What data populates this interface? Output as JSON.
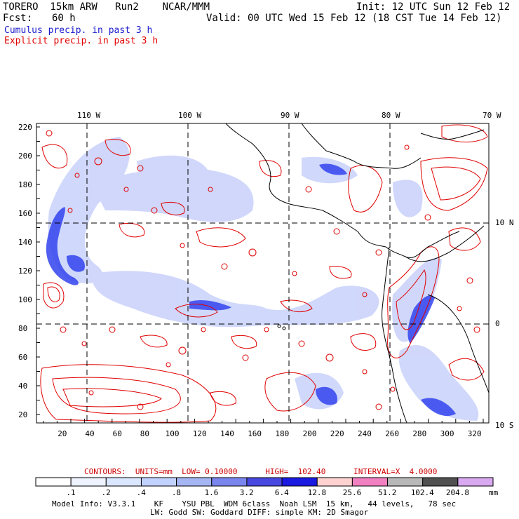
{
  "header": {
    "line1_left": "TORERO  15km ARW   Run2    NCAR/MMM",
    "line1_right": "Init: 12 UTC Sun 12 Feb 12",
    "line2_left_label": "Fcst:",
    "line2_left_value": "60 h",
    "line2_right": "Valid: 00 UTC Wed 15 Feb 12 (18 CST Tue 14 Feb 12)"
  },
  "fields": {
    "cumulus": "Cumulus precip. in past 3 h",
    "explicit": "Explicit precip. in past 3 h"
  },
  "map": {
    "lon_labels": [
      "110 W",
      "100 W",
      "90 W",
      "80 W",
      "70 W"
    ],
    "lat_labels": [
      "10 N",
      "0",
      "10 S"
    ],
    "y_ticks": [
      "220",
      "200",
      "180",
      "160",
      "140",
      "120",
      "100",
      "80",
      "60",
      "40",
      "20"
    ],
    "x_ticks": [
      "20",
      "40",
      "60",
      "80",
      "100",
      "120",
      "140",
      "160",
      "180",
      "200",
      "220",
      "240",
      "260",
      "280",
      "300",
      "320"
    ],
    "colors": {
      "explicit": "#e00000",
      "cumulus": "#3344ee",
      "cumulus_light": "#aab8f8",
      "coast": "#000000",
      "grid": "#000000"
    }
  },
  "contour_line": "CONTOURS:  UNITS=mm  LOW= 0.10000      HIGH=  102.40      INTERVAL=X  4.0000",
  "colorbar": {
    "labels": [
      ".1",
      ".2",
      ".4",
      ".8",
      "1.6",
      "3.2",
      "6.4",
      "12.8",
      "25.6",
      "51.2",
      "102.4",
      "204.8"
    ],
    "colors": [
      "#ffffff",
      "#eef3ff",
      "#dbe6ff",
      "#c2d2ff",
      "#a6b6f4",
      "#7a86ee",
      "#4848e0",
      "#1a1ae0",
      "#ffd2d2",
      "#f080c0",
      "#b8b8b8",
      "#505050",
      "#d8a8f0"
    ],
    "unit": "mm"
  },
  "info": {
    "line1": "Model Info: V3.3.1    KF    YSU PBL  WDM 6class  Noah LSM  15 km,   44 levels,   78 sec",
    "line2": "LW: Godd SW: Goddard DIFF: simple KM: 2D Smagor"
  }
}
